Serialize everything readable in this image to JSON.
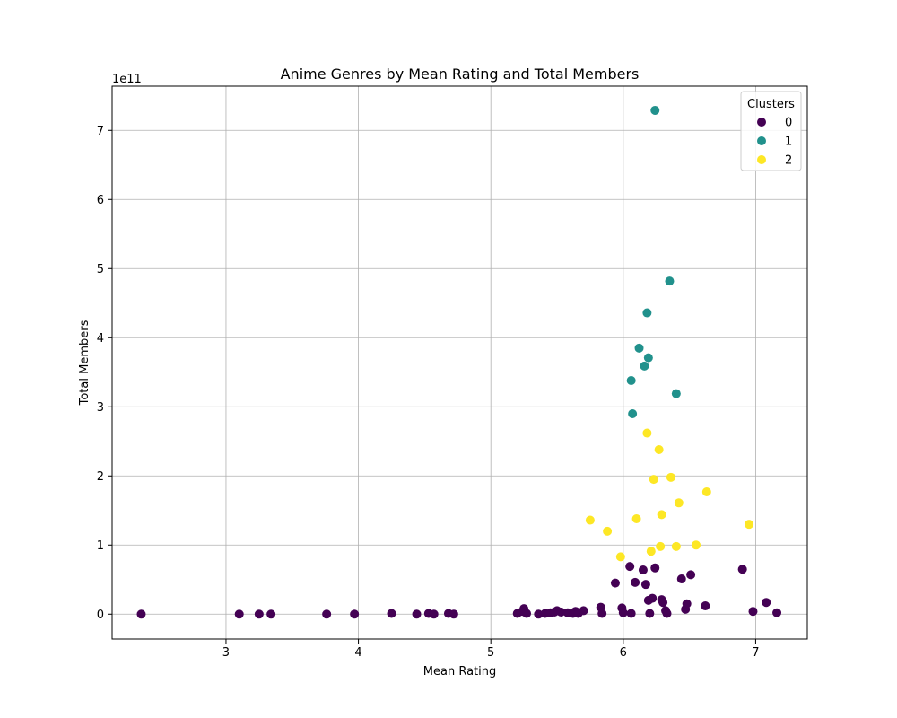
{
  "chart_data": {
    "type": "scatter",
    "title": "Anime Genres by Mean Rating and Total Members",
    "xlabel": "Mean Rating",
    "ylabel": "Total Members",
    "y_offset_text": "1e11",
    "y_scale_factor": 100000000000,
    "xlim": [
      2.14,
      7.39
    ],
    "ylim": [
      -0.36,
      7.64
    ],
    "x_ticks": [
      3,
      4,
      5,
      6,
      7
    ],
    "y_ticks": [
      0,
      1,
      2,
      3,
      4,
      5,
      6,
      7
    ],
    "grid": true,
    "legend": {
      "title": "Clusters",
      "position": "top-right"
    },
    "series": [
      {
        "name": "0",
        "color": "#440154",
        "points": [
          [
            2.36,
            0.0
          ],
          [
            3.1,
            0.0
          ],
          [
            3.25,
            0.0
          ],
          [
            3.34,
            0.0
          ],
          [
            3.76,
            0.0
          ],
          [
            3.97,
            0.0
          ],
          [
            4.25,
            0.01
          ],
          [
            4.44,
            0.0
          ],
          [
            4.53,
            0.01
          ],
          [
            4.57,
            0.0
          ],
          [
            4.68,
            0.01
          ],
          [
            4.72,
            0.0
          ],
          [
            5.2,
            0.01
          ],
          [
            5.24,
            0.04
          ],
          [
            5.25,
            0.08
          ],
          [
            5.27,
            0.01
          ],
          [
            5.36,
            0.0
          ],
          [
            5.41,
            0.01
          ],
          [
            5.45,
            0.02
          ],
          [
            5.48,
            0.03
          ],
          [
            5.5,
            0.05
          ],
          [
            5.53,
            0.03
          ],
          [
            5.58,
            0.02
          ],
          [
            5.62,
            0.01
          ],
          [
            5.64,
            0.04
          ],
          [
            5.66,
            0.01
          ],
          [
            5.7,
            0.05
          ],
          [
            5.83,
            0.1
          ],
          [
            5.84,
            0.01
          ],
          [
            5.94,
            0.45
          ],
          [
            5.99,
            0.09
          ],
          [
            6.0,
            0.02
          ],
          [
            6.05,
            0.69
          ],
          [
            6.06,
            0.01
          ],
          [
            6.09,
            0.46
          ],
          [
            6.15,
            0.64
          ],
          [
            6.17,
            0.43
          ],
          [
            6.19,
            0.2
          ],
          [
            6.2,
            0.01
          ],
          [
            6.22,
            0.23
          ],
          [
            6.24,
            0.67
          ],
          [
            6.29,
            0.21
          ],
          [
            6.3,
            0.17
          ],
          [
            6.32,
            0.05
          ],
          [
            6.33,
            0.01
          ],
          [
            6.44,
            0.51
          ],
          [
            6.47,
            0.07
          ],
          [
            6.48,
            0.15
          ],
          [
            6.51,
            0.57
          ],
          [
            6.62,
            0.12
          ],
          [
            6.9,
            0.65
          ],
          [
            6.98,
            0.04
          ],
          [
            7.08,
            0.17
          ],
          [
            7.16,
            0.02
          ]
        ]
      },
      {
        "name": "1",
        "color": "#21918c",
        "points": [
          [
            6.06,
            3.38
          ],
          [
            6.07,
            2.9
          ],
          [
            6.12,
            3.85
          ],
          [
            6.16,
            3.59
          ],
          [
            6.18,
            4.36
          ],
          [
            6.19,
            3.71
          ],
          [
            6.24,
            7.29
          ],
          [
            6.35,
            4.82
          ],
          [
            6.4,
            3.19
          ]
        ]
      },
      {
        "name": "2",
        "color": "#fde725",
        "points": [
          [
            5.75,
            1.36
          ],
          [
            5.88,
            1.2
          ],
          [
            5.98,
            0.83
          ],
          [
            6.1,
            1.38
          ],
          [
            6.18,
            2.62
          ],
          [
            6.21,
            0.91
          ],
          [
            6.23,
            1.95
          ],
          [
            6.27,
            2.38
          ],
          [
            6.28,
            0.98
          ],
          [
            6.29,
            1.44
          ],
          [
            6.36,
            1.98
          ],
          [
            6.4,
            0.98
          ],
          [
            6.42,
            1.61
          ],
          [
            6.55,
            1.0
          ],
          [
            6.63,
            1.77
          ],
          [
            6.95,
            1.3
          ]
        ]
      }
    ]
  }
}
